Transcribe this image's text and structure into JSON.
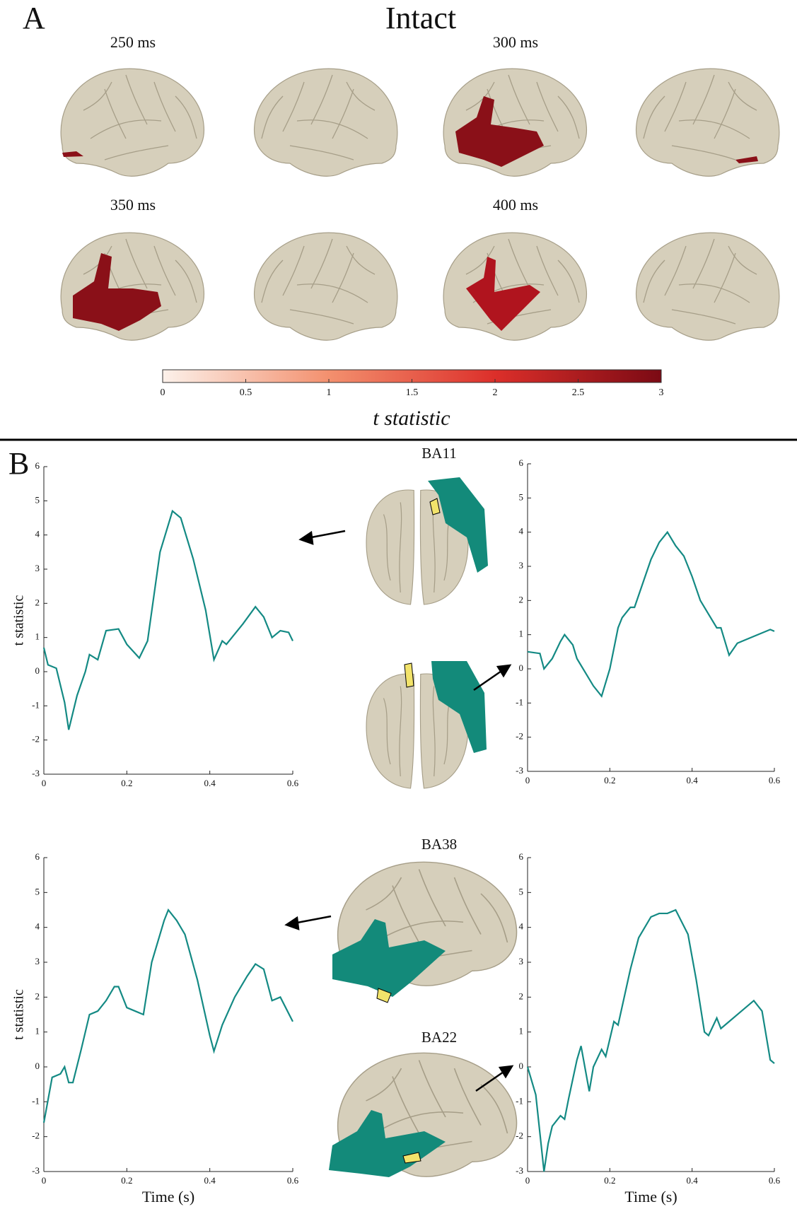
{
  "panel_a": {
    "label": "A",
    "title": "Intact",
    "times": [
      "250 ms",
      "300 ms",
      "350 ms",
      "400 ms"
    ]
  },
  "panel_b": {
    "label": "B",
    "regions": [
      "BA11",
      "BA38",
      "BA22"
    ]
  },
  "chart_data": [
    {
      "type": "colorbar",
      "xlim": [
        0,
        3
      ],
      "xticks": [
        0,
        0.5,
        1,
        1.5,
        2,
        2.5,
        3
      ],
      "xlabel": "t statistic",
      "colors": [
        "#fcf1ea",
        "#f3906e",
        "#dc2f2a",
        "#7b0a14"
      ]
    },
    {
      "type": "line",
      "color": "#148a84",
      "xlim": [
        0,
        0.6
      ],
      "ylim": [
        -3,
        6
      ],
      "xticks": [
        0,
        0.2,
        0.4,
        0.6
      ],
      "yticks": [
        -3,
        -2,
        -1,
        0,
        1,
        2,
        3,
        4,
        5,
        6
      ],
      "ylabel": "t statistic",
      "x": [
        0,
        0.01,
        0.03,
        0.05,
        0.06,
        0.08,
        0.1,
        0.11,
        0.13,
        0.15,
        0.18,
        0.2,
        0.23,
        0.25,
        0.28,
        0.31,
        0.33,
        0.36,
        0.39,
        0.41,
        0.43,
        0.44,
        0.46,
        0.48,
        0.51,
        0.53,
        0.55,
        0.57,
        0.59,
        0.6
      ],
      "values": [
        0.7,
        0.2,
        0.1,
        -0.9,
        -1.7,
        -0.7,
        0,
        0.5,
        0.35,
        1.2,
        1.25,
        0.8,
        0.4,
        0.9,
        3.5,
        4.7,
        4.5,
        3.3,
        1.8,
        0.35,
        0.9,
        0.8,
        1.1,
        1.4,
        1.9,
        1.6,
        1.0,
        1.2,
        1.15,
        0.9
      ]
    },
    {
      "type": "line",
      "color": "#148a84",
      "xlim": [
        0,
        0.6
      ],
      "ylim": [
        -3,
        6
      ],
      "xticks": [
        0,
        0.2,
        0.4,
        0.6
      ],
      "yticks": [
        -3,
        -2,
        -1,
        0,
        1,
        2,
        3,
        4,
        5,
        6
      ],
      "x": [
        0,
        0.03,
        0.04,
        0.06,
        0.08,
        0.09,
        0.11,
        0.12,
        0.14,
        0.16,
        0.18,
        0.2,
        0.22,
        0.23,
        0.25,
        0.26,
        0.28,
        0.3,
        0.32,
        0.34,
        0.36,
        0.38,
        0.4,
        0.42,
        0.44,
        0.46,
        0.47,
        0.49,
        0.51,
        0.53,
        0.56,
        0.59,
        0.6
      ],
      "values": [
        0.5,
        0.45,
        0,
        0.3,
        0.8,
        1.0,
        0.7,
        0.3,
        -0.1,
        -0.5,
        -0.8,
        0,
        1.2,
        1.5,
        1.8,
        1.8,
        2.5,
        3.2,
        3.7,
        4.0,
        3.6,
        3.3,
        2.7,
        2.0,
        1.6,
        1.2,
        1.2,
        0.4,
        0.75,
        0.85,
        1.0,
        1.15,
        1.1
      ]
    },
    {
      "type": "line",
      "color": "#148a84",
      "xlim": [
        0,
        0.6
      ],
      "ylim": [
        -3,
        6
      ],
      "xticks": [
        0,
        0.2,
        0.4,
        0.6
      ],
      "yticks": [
        -3,
        -2,
        -1,
        0,
        1,
        2,
        3,
        4,
        5,
        6
      ],
      "ylabel": "t statistic",
      "xlabel": "Time (s)",
      "x": [
        0,
        0.02,
        0.04,
        0.05,
        0.06,
        0.07,
        0.09,
        0.11,
        0.13,
        0.15,
        0.17,
        0.18,
        0.2,
        0.22,
        0.24,
        0.26,
        0.29,
        0.3,
        0.32,
        0.34,
        0.37,
        0.4,
        0.41,
        0.43,
        0.46,
        0.49,
        0.51,
        0.53,
        0.55,
        0.57,
        0.6
      ],
      "values": [
        -1.6,
        -0.3,
        -0.2,
        0,
        -0.45,
        -0.45,
        0.5,
        1.5,
        1.6,
        1.9,
        2.3,
        2.3,
        1.7,
        1.6,
        1.5,
        3.0,
        4.2,
        4.5,
        4.2,
        3.8,
        2.5,
        0.9,
        0.45,
        1.2,
        2.0,
        2.6,
        2.95,
        2.8,
        1.9,
        2.0,
        1.3
      ]
    },
    {
      "type": "line",
      "color": "#148a84",
      "xlim": [
        0,
        0.6
      ],
      "ylim": [
        -3,
        6
      ],
      "xticks": [
        0,
        0.2,
        0.4,
        0.6
      ],
      "yticks": [
        -3,
        -2,
        -1,
        0,
        1,
        2,
        3,
        4,
        5,
        6
      ],
      "xlabel": "Time (s)",
      "x": [
        0,
        0.02,
        0.04,
        0.05,
        0.06,
        0.08,
        0.09,
        0.1,
        0.12,
        0.13,
        0.15,
        0.16,
        0.18,
        0.19,
        0.21,
        0.22,
        0.25,
        0.27,
        0.3,
        0.32,
        0.34,
        0.36,
        0.39,
        0.41,
        0.43,
        0.44,
        0.46,
        0.47,
        0.49,
        0.52,
        0.55,
        0.57,
        0.59,
        0.6
      ],
      "values": [
        0,
        -0.8,
        -3,
        -2.2,
        -1.7,
        -1.4,
        -1.5,
        -0.9,
        0.2,
        0.6,
        -0.7,
        0,
        0.5,
        0.3,
        1.3,
        1.2,
        2.8,
        3.7,
        4.3,
        4.4,
        4.4,
        4.5,
        3.8,
        2.5,
        1.0,
        0.9,
        1.4,
        1.1,
        1.3,
        1.6,
        1.9,
        1.6,
        0.2,
        0.1
      ]
    }
  ]
}
